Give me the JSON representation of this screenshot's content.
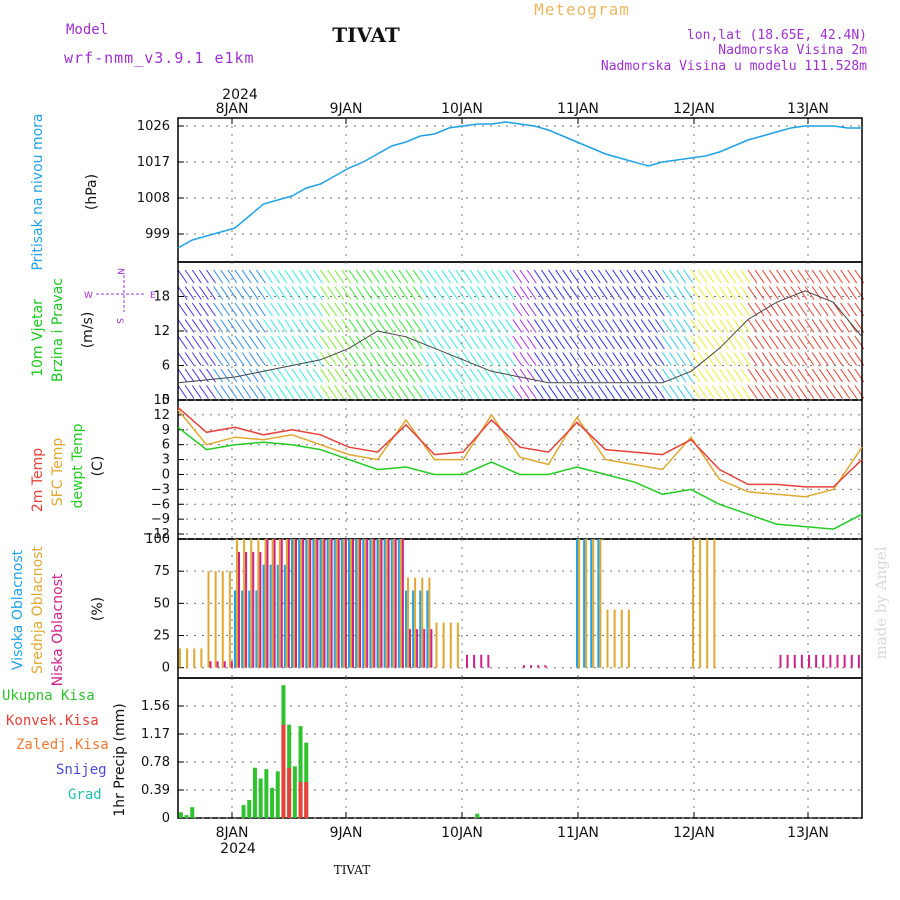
{
  "header": {
    "model_label": "Model",
    "model_name": "wrf-nmm_v3.9.1 e1km",
    "station": "TIVAT",
    "title": "Meteogram",
    "lonlat": "lon,lat (18.65E, 42.4N)",
    "elevation": "Nadmorska Visina 2m",
    "model_elevation": "Nadmorska Visina u modelu 111.528m"
  },
  "footer": {
    "station": "TIVAT",
    "credit": "made by Angel"
  },
  "colors": {
    "pressure": "#1fa2e6",
    "wind_label": "#19c91f",
    "t2m": "#e8403a",
    "sfc": "#e0a830",
    "dewpt": "#22cc22",
    "cloud_high": "#1fa2e6",
    "cloud_mid": "#e0a830",
    "cloud_low": "#d0208a",
    "precip_total": "#2fc22f",
    "precip_conv": "#e8403a",
    "precip_frz": "#f07a30",
    "precip_snow": "#4a4ad8",
    "precip_grad": "#20c0b0",
    "purple": "#a030d0"
  },
  "chart_data": [
    {
      "type": "line",
      "panel": "pressure",
      "ylabel_left": "Pritisak na nivou mora",
      "ylabel_unit": "(hPa)",
      "yticks": [
        999,
        1008,
        1017,
        1026
      ],
      "ylim": [
        992,
        1028
      ],
      "x_top_year": "2024",
      "x_tick_labels": [
        "8JAN",
        "9JAN",
        "10JAN",
        "11JAN",
        "12JAN",
        "13JAN"
      ],
      "x": [
        0,
        0.5,
        1,
        1.5,
        2,
        2.5,
        3,
        3.5,
        4,
        4.5,
        5,
        5.5,
        6,
        6.5,
        7,
        7.5,
        8,
        8.5,
        9,
        9.5,
        10,
        10.5,
        11,
        11.5,
        12,
        12.5,
        13,
        13.5,
        14,
        14.5,
        15,
        15.5,
        16,
        16.5,
        17,
        17.5,
        18,
        18.5,
        19,
        19.5,
        20,
        20.5,
        21,
        21.5,
        22,
        22.5,
        23,
        23.5,
        24
      ],
      "series": [
        {
          "values": [
            995.5,
            997.5,
            998.5,
            999.5,
            1000.5,
            1003.5,
            1006.5,
            1007.5,
            1008.5,
            1010.5,
            1011.5,
            1013.5,
            1015.5,
            1017,
            1019,
            1021,
            1022,
            1023.5,
            1024,
            1025.5,
            1026,
            1026.5,
            1026.5,
            1027,
            1026.5,
            1026,
            1025,
            1023.5,
            1022,
            1020.5,
            1019,
            1018,
            1017,
            1016,
            1017,
            1017.5,
            1018,
            1018.5,
            1019.5,
            1021,
            1022.5,
            1023.5,
            1024.5,
            1025.5,
            1026,
            1026,
            1026,
            1025.5,
            1025.5
          ]
        }
      ]
    },
    {
      "type": "line",
      "panel": "wind",
      "ylabel_left": "10m Vjetar",
      "ylabel_left2": "Brzina i Pravac",
      "ylabel_unit": "(m/s)",
      "compass_labels": [
        "N",
        "E",
        "W",
        "S"
      ],
      "yticks": [
        0,
        6,
        12,
        18
      ],
      "ylim": [
        0,
        24
      ],
      "x": [
        0,
        1,
        2,
        3,
        4,
        5,
        6,
        7,
        8,
        9,
        10,
        11,
        12,
        13,
        14,
        15,
        16,
        17,
        18,
        19,
        20,
        21,
        22,
        23,
        24
      ],
      "series": [
        {
          "values": [
            3,
            3.5,
            4,
            5,
            6,
            7,
            9,
            12,
            11,
            9,
            7,
            5,
            4,
            3,
            3,
            3,
            3,
            3,
            5,
            9,
            14,
            17,
            19,
            17,
            11
          ]
        }
      ]
    },
    {
      "type": "line",
      "panel": "temperature",
      "ylabel_left": "2m Temp",
      "ylabel_left2": "SFC Temp",
      "ylabel_left3": "dewpt Temp",
      "ylabel_unit": "(C)",
      "yticks": [
        15,
        12,
        9,
        6,
        3,
        0,
        -3,
        -6,
        -9,
        -12
      ],
      "ylim": [
        -13,
        15
      ],
      "x": [
        0,
        1,
        2,
        3,
        4,
        5,
        6,
        7,
        8,
        9,
        10,
        11,
        12,
        13,
        14,
        15,
        16,
        17,
        18,
        19,
        20,
        21,
        22,
        23,
        24
      ],
      "series": [
        {
          "name": "2m Temp",
          "values": [
            13.5,
            8.5,
            9.5,
            8,
            9,
            8,
            5.5,
            4.5,
            10,
            4,
            4.5,
            11,
            5.5,
            4.5,
            10.5,
            5,
            4.5,
            4,
            7,
            1,
            -2,
            -2,
            -2.5,
            -2.5,
            3
          ]
        },
        {
          "name": "SFC Temp",
          "values": [
            13,
            6,
            7.5,
            7,
            8,
            6,
            4,
            3,
            11,
            3,
            3,
            12,
            3.5,
            2,
            11.5,
            3,
            2,
            1,
            7.5,
            -1,
            -3.5,
            -4,
            -4.5,
            -3,
            5.5
          ]
        },
        {
          "name": "dewpt Temp",
          "values": [
            9.5,
            5,
            6,
            6.5,
            6,
            5,
            3,
            1,
            1.5,
            0,
            0,
            2.5,
            0,
            0,
            1.5,
            0,
            -1.5,
            -4,
            -3,
            -6,
            -8,
            -10,
            -10.5,
            -11,
            -8
          ]
        }
      ]
    },
    {
      "type": "bar",
      "panel": "cloud",
      "ylabel_left": "Visoka Oblacnost",
      "ylabel_left2": "Srednja Oblacnost",
      "ylabel_left3": "Niska Oblacnost",
      "ylabel_unit": "(%)",
      "yticks": [
        0,
        25,
        50,
        75,
        100
      ],
      "ylim": [
        0,
        100
      ],
      "x": [
        0,
        1,
        2,
        3,
        4,
        5,
        6,
        7,
        8,
        9,
        10,
        11,
        12,
        13,
        14,
        15,
        16,
        17,
        18,
        19,
        20,
        21,
        22,
        23,
        24
      ],
      "series": [
        {
          "name": "Visoka Oblacnost",
          "values": [
            0,
            0,
            60,
            80,
            100,
            100,
            100,
            100,
            60,
            0,
            0,
            0,
            0,
            0,
            100,
            0,
            0,
            0,
            0,
            0,
            0,
            0,
            0,
            0,
            0
          ]
        },
        {
          "name": "Srednja Oblacnost",
          "values": [
            15,
            75,
            100,
            100,
            100,
            100,
            100,
            100,
            70,
            35,
            0,
            0,
            0,
            0,
            100,
            45,
            0,
            0,
            100,
            0,
            0,
            0,
            0,
            0,
            0
          ]
        },
        {
          "name": "Niska Oblacnost",
          "values": [
            0,
            5,
            90,
            100,
            100,
            100,
            100,
            100,
            30,
            0,
            10,
            0,
            2,
            0,
            0,
            0,
            0,
            0,
            0,
            0,
            0,
            10,
            10,
            10,
            0
          ]
        }
      ]
    },
    {
      "type": "bar",
      "panel": "precip",
      "ylabel_left": "Ukupna Kisa",
      "ylabel_left2": "Konvek.Kisa",
      "ylabel_left3": "Zaledj.Kisa",
      "ylabel_left4": "Snijeg",
      "ylabel_left5": "Grad",
      "ylabel_unit": "1hr Precip (mm)",
      "yticks": [
        0,
        0.39,
        0.78,
        1.17,
        1.56
      ],
      "ylim": [
        0,
        1.95
      ],
      "x_bottom_year": "2024",
      "x_tick_labels": [
        "8JAN",
        "9JAN",
        "10JAN",
        "11JAN",
        "12JAN",
        "13JAN"
      ],
      "x": [
        0.1,
        0.3,
        0.5,
        2.3,
        2.5,
        2.7,
        2.9,
        3.1,
        3.3,
        3.5,
        3.7,
        3.9,
        4.1,
        4.3,
        4.5,
        4.7,
        4.9,
        10.5
      ],
      "series": [
        {
          "name": "Ukupna Kisa",
          "values": [
            0.08,
            0.04,
            0.15,
            0.18,
            0.25,
            0.7,
            0.55,
            0.68,
            0.42,
            0.65,
            1.85,
            1.3,
            0.72,
            1.28,
            1.05,
            0,
            0,
            0.06
          ]
        },
        {
          "name": "Konvek.Kisa",
          "values": [
            0,
            0,
            0,
            0,
            0,
            0,
            0,
            0,
            0,
            0,
            1.3,
            0.7,
            0,
            0.5,
            0.5,
            0,
            0,
            0
          ]
        }
      ]
    }
  ]
}
